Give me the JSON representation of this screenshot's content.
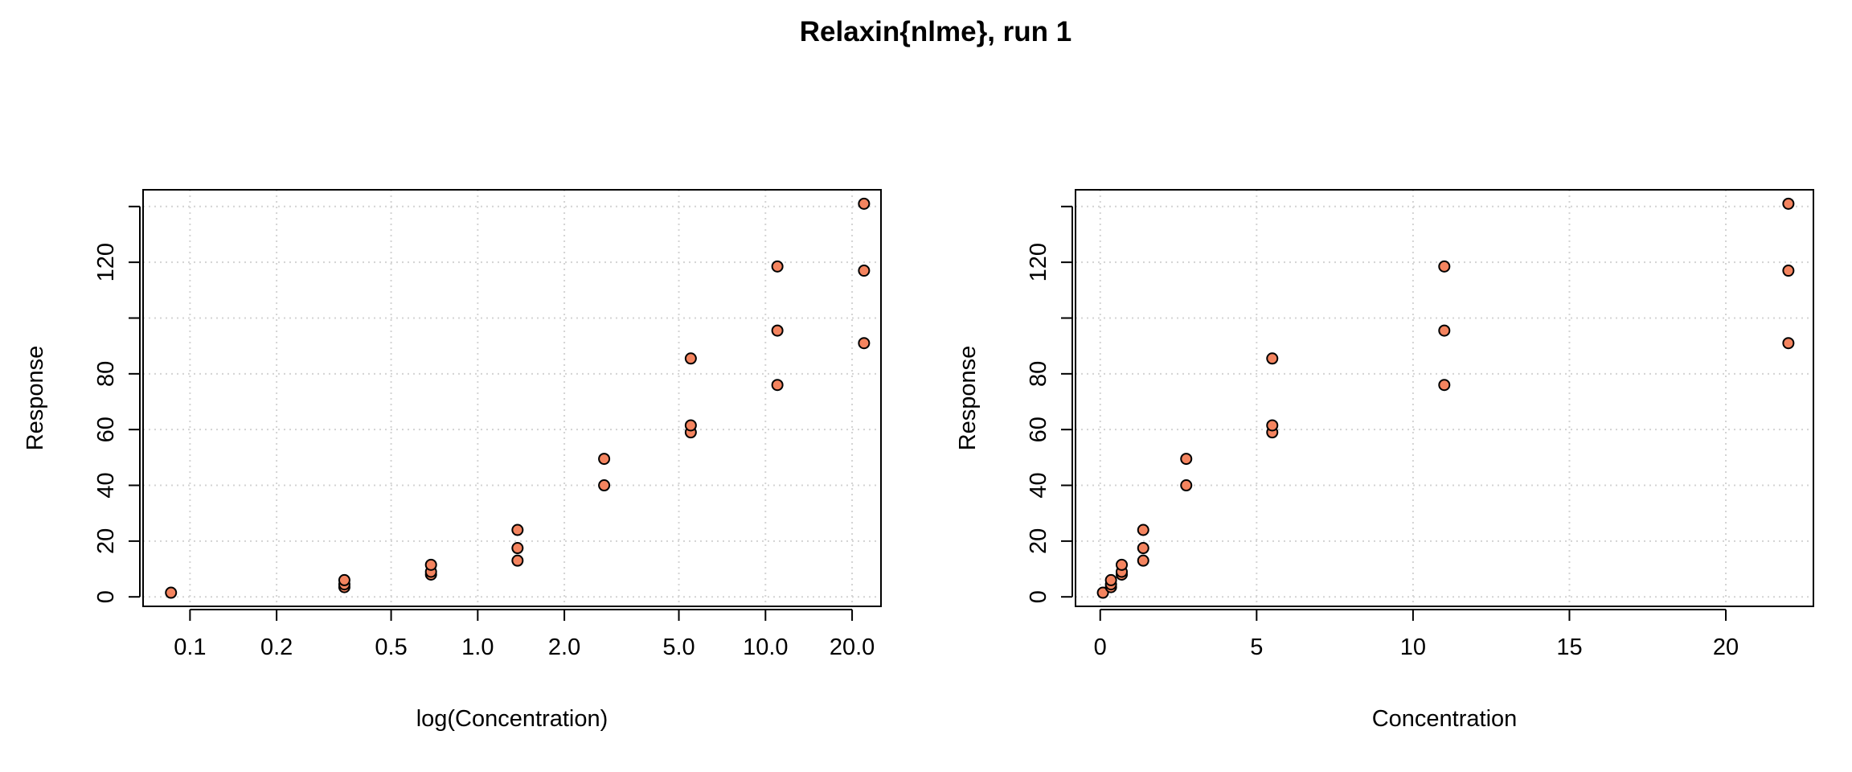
{
  "title": "Relaxin{nlme}, run 1",
  "colors": {
    "point_fill": "#f4845f",
    "point_stroke": "#000000",
    "grid": "#d3d3d3"
  },
  "chart_data": [
    {
      "type": "scatter",
      "log_x": true,
      "grid": true,
      "xlabel": "log(Concentration)",
      "ylabel": "Response",
      "xlim": [
        0.0687,
        25.2
      ],
      "ylim": [
        -3.4,
        146
      ],
      "xticks": [
        0.1,
        0.2,
        0.5,
        1.0,
        2.0,
        5.0,
        10.0,
        20.0
      ],
      "xtick_labels": [
        "0.1",
        "0.2",
        "0.5",
        "1.0",
        "2.0",
        "5.0",
        "10.0",
        "20.0"
      ],
      "yticks": [
        0,
        20,
        40,
        60,
        80,
        100,
        120,
        140
      ],
      "ytick_labels": [
        "0",
        "20",
        "40",
        "60",
        "80",
        "",
        "120",
        ""
      ],
      "gridx": [
        0.1,
        0.2,
        0.5,
        1.0,
        2.0,
        5.0,
        10.0,
        20.0
      ],
      "gridy": [
        0,
        20,
        40,
        60,
        80,
        100,
        120,
        140
      ],
      "x": [
        0.0859,
        0.344,
        0.344,
        0.344,
        0.688,
        0.688,
        0.688,
        1.375,
        1.375,
        1.375,
        2.75,
        2.75,
        5.5,
        5.5,
        5.5,
        11,
        11,
        11,
        22,
        22,
        22
      ],
      "y": [
        1.5,
        3.5,
        4.5,
        6,
        8,
        9,
        11.5,
        13,
        17.5,
        24,
        40,
        49.5,
        59,
        61.5,
        85.5,
        76,
        95.5,
        118.5,
        91,
        117,
        141
      ]
    },
    {
      "type": "scatter",
      "log_x": false,
      "grid": true,
      "xlabel": "Concentration",
      "ylabel": "Response",
      "xlim": [
        -0.79,
        22.8
      ],
      "ylim": [
        -3.4,
        146
      ],
      "xticks": [
        0,
        5,
        10,
        15,
        20
      ],
      "xtick_labels": [
        "0",
        "5",
        "10",
        "15",
        "20"
      ],
      "yticks": [
        0,
        20,
        40,
        60,
        80,
        100,
        120,
        140
      ],
      "ytick_labels": [
        "0",
        "20",
        "40",
        "60",
        "80",
        "",
        "120",
        ""
      ],
      "gridx": [
        0,
        5,
        10,
        15,
        20
      ],
      "gridy": [
        0,
        20,
        40,
        60,
        80,
        100,
        120,
        140
      ],
      "x": [
        0.0859,
        0.344,
        0.344,
        0.344,
        0.688,
        0.688,
        0.688,
        1.375,
        1.375,
        1.375,
        2.75,
        2.75,
        5.5,
        5.5,
        5.5,
        11,
        11,
        11,
        22,
        22,
        22
      ],
      "y": [
        1.5,
        3.5,
        4.5,
        6,
        8,
        9,
        11.5,
        13,
        17.5,
        24,
        40,
        49.5,
        59,
        61.5,
        85.5,
        76,
        95.5,
        118.5,
        91,
        117,
        141
      ]
    }
  ]
}
